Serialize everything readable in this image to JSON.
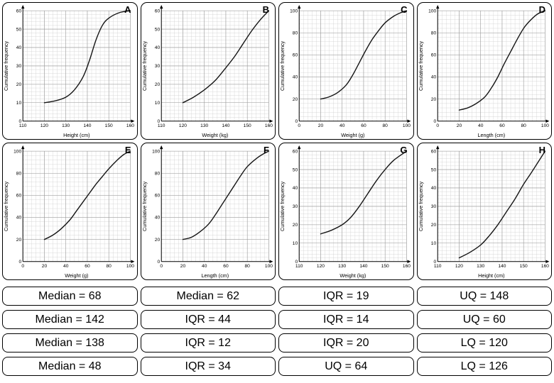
{
  "chart_data": [
    {
      "type": "line",
      "label": "A",
      "ylabel": "Cumulative frequency",
      "xlabel": "Height (cm)",
      "x_min": 110,
      "x_max": 160,
      "y_min": 0,
      "y_max": 60,
      "x_step": 10,
      "y_step": 10,
      "points": [
        [
          120,
          10
        ],
        [
          125,
          11
        ],
        [
          130,
          13
        ],
        [
          134,
          17
        ],
        [
          138,
          24
        ],
        [
          141,
          33
        ],
        [
          144,
          44
        ],
        [
          147,
          52
        ],
        [
          150,
          56
        ],
        [
          155,
          59
        ],
        [
          160,
          60
        ]
      ]
    },
    {
      "type": "line",
      "label": "B",
      "ylabel": "Cumulative frequency",
      "xlabel": "Weight (kg)",
      "x_min": 110,
      "x_max": 160,
      "y_min": 0,
      "y_max": 60,
      "x_step": 10,
      "y_step": 10,
      "points": [
        [
          120,
          10
        ],
        [
          125,
          13
        ],
        [
          130,
          17
        ],
        [
          135,
          22
        ],
        [
          140,
          29
        ],
        [
          144,
          35
        ],
        [
          148,
          42
        ],
        [
          152,
          49
        ],
        [
          156,
          55
        ],
        [
          160,
          60
        ]
      ]
    },
    {
      "type": "line",
      "label": "C",
      "ylabel": "Cumulative frequency",
      "xlabel": "Weight (g)",
      "x_min": 0,
      "x_max": 100,
      "y_min": 0,
      "y_max": 100,
      "x_step": 20,
      "y_step": 20,
      "points": [
        [
          20,
          20
        ],
        [
          28,
          22
        ],
        [
          36,
          26
        ],
        [
          44,
          33
        ],
        [
          50,
          42
        ],
        [
          56,
          53
        ],
        [
          62,
          64
        ],
        [
          68,
          74
        ],
        [
          74,
          82
        ],
        [
          80,
          89
        ],
        [
          88,
          95
        ],
        [
          94,
          98
        ],
        [
          100,
          100
        ]
      ]
    },
    {
      "type": "line",
      "label": "D",
      "ylabel": "Cumulative frequency",
      "xlabel": "Length (cm)",
      "x_min": 0,
      "x_max": 100,
      "y_min": 0,
      "y_max": 100,
      "x_step": 20,
      "y_step": 20,
      "points": [
        [
          20,
          10
        ],
        [
          28,
          12
        ],
        [
          36,
          16
        ],
        [
          44,
          22
        ],
        [
          50,
          30
        ],
        [
          56,
          40
        ],
        [
          62,
          52
        ],
        [
          68,
          63
        ],
        [
          74,
          74
        ],
        [
          80,
          84
        ],
        [
          86,
          91
        ],
        [
          93,
          97
        ],
        [
          100,
          100
        ]
      ]
    },
    {
      "type": "line",
      "label": "E",
      "ylabel": "Cumulative frequency",
      "xlabel": "Weight (g)",
      "x_min": 0,
      "x_max": 100,
      "y_min": 0,
      "y_max": 100,
      "x_step": 20,
      "y_step": 20,
      "points": [
        [
          20,
          20
        ],
        [
          28,
          24
        ],
        [
          36,
          30
        ],
        [
          44,
          38
        ],
        [
          50,
          46
        ],
        [
          56,
          54
        ],
        [
          62,
          62
        ],
        [
          68,
          70
        ],
        [
          74,
          77
        ],
        [
          80,
          84
        ],
        [
          88,
          92
        ],
        [
          94,
          97
        ],
        [
          100,
          100
        ]
      ]
    },
    {
      "type": "line",
      "label": "F",
      "ylabel": "Cumulative frequency",
      "xlabel": "Length (cm)",
      "x_min": 0,
      "x_max": 100,
      "y_min": 0,
      "y_max": 100,
      "x_step": 20,
      "y_step": 20,
      "points": [
        [
          20,
          20
        ],
        [
          28,
          22
        ],
        [
          36,
          27
        ],
        [
          44,
          34
        ],
        [
          50,
          42
        ],
        [
          56,
          51
        ],
        [
          62,
          60
        ],
        [
          68,
          69
        ],
        [
          74,
          78
        ],
        [
          80,
          86
        ],
        [
          88,
          93
        ],
        [
          94,
          97
        ],
        [
          100,
          100
        ]
      ]
    },
    {
      "type": "line",
      "label": "G",
      "ylabel": "Cumulative frequency",
      "xlabel": "Weight (kg)",
      "x_min": 110,
      "x_max": 160,
      "y_min": 0,
      "y_max": 60,
      "x_step": 10,
      "y_step": 10,
      "points": [
        [
          120,
          15
        ],
        [
          125,
          17
        ],
        [
          130,
          20
        ],
        [
          134,
          24
        ],
        [
          138,
          30
        ],
        [
          142,
          37
        ],
        [
          146,
          44
        ],
        [
          150,
          50
        ],
        [
          154,
          55
        ],
        [
          160,
          60
        ]
      ]
    },
    {
      "type": "line",
      "label": "H",
      "ylabel": "Cumulative frequency",
      "xlabel": "Height (cm)",
      "x_min": 110,
      "x_max": 160,
      "y_min": 0,
      "y_max": 60,
      "x_step": 10,
      "y_step": 10,
      "points": [
        [
          120,
          2
        ],
        [
          125,
          5
        ],
        [
          130,
          9
        ],
        [
          134,
          14
        ],
        [
          138,
          20
        ],
        [
          142,
          27
        ],
        [
          146,
          34
        ],
        [
          150,
          42
        ],
        [
          154,
          49
        ],
        [
          160,
          60
        ]
      ]
    }
  ],
  "answers": {
    "rows": [
      [
        "Median = 68",
        "Median = 62",
        "IQR = 19",
        "UQ = 148"
      ],
      [
        "Median = 142",
        "IQR = 44",
        "IQR = 14",
        "UQ = 60"
      ],
      [
        "Median = 138",
        "IQR = 12",
        "IQR = 20",
        "LQ = 120"
      ],
      [
        "Median = 48",
        "IQR = 34",
        "UQ = 64",
        "LQ = 126"
      ]
    ]
  }
}
